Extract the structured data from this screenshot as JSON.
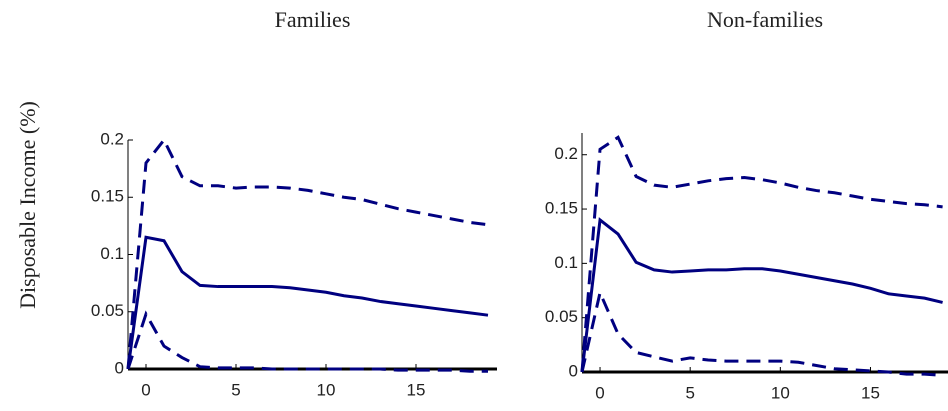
{
  "ylabel": "Disposable Income (%)",
  "chart_data": [
    {
      "type": "line",
      "title": "Families",
      "x": [
        -1,
        0,
        1,
        2,
        3,
        4,
        5,
        6,
        7,
        8,
        9,
        10,
        11,
        12,
        13,
        14,
        15,
        16,
        17,
        18,
        19
      ],
      "series": [
        {
          "color": "#000080",
          "dashed": false,
          "values": [
            0,
            0.115,
            0.112,
            0.085,
            0.073,
            0.072,
            0.072,
            0.072,
            0.072,
            0.071,
            0.069,
            0.067,
            0.064,
            0.062,
            0.059,
            0.057,
            0.055,
            0.053,
            0.051,
            0.049,
            0.047
          ]
        },
        {
          "color": "#000080",
          "dashed": true,
          "values": [
            0,
            0.18,
            0.2,
            0.168,
            0.16,
            0.16,
            0.158,
            0.159,
            0.159,
            0.158,
            0.156,
            0.153,
            0.15,
            0.148,
            0.144,
            0.14,
            0.137,
            0.134,
            0.131,
            0.128,
            0.126
          ]
        },
        {
          "color": "#000080",
          "dashed": true,
          "values": [
            0,
            0.048,
            0.02,
            0.01,
            0.002,
            0.001,
            0.001,
            0.001,
            0,
            0,
            0,
            0,
            0,
            0,
            0,
            -0.001,
            -0.001,
            -0.001,
            -0.001,
            -0.002,
            -0.002
          ]
        }
      ],
      "xlim": [
        -1,
        19.5
      ],
      "xticks": [
        0,
        5,
        10,
        15
      ],
      "ylim": [
        0,
        0.2
      ],
      "yticks": [
        0,
        0.05,
        0.1,
        0.15,
        0.2
      ]
    },
    {
      "type": "line",
      "title": "Non-families",
      "x": [
        -1,
        0,
        1,
        2,
        3,
        4,
        5,
        6,
        7,
        8,
        9,
        10,
        11,
        12,
        13,
        14,
        15,
        16,
        17,
        18,
        19
      ],
      "series": [
        {
          "color": "#000080",
          "dashed": false,
          "values": [
            0,
            0.14,
            0.127,
            0.101,
            0.094,
            0.092,
            0.093,
            0.094,
            0.094,
            0.095,
            0.095,
            0.093,
            0.09,
            0.087,
            0.084,
            0.081,
            0.077,
            0.072,
            0.07,
            0.068,
            0.064
          ]
        },
        {
          "color": "#000080",
          "dashed": true,
          "values": [
            0,
            0.205,
            0.216,
            0.18,
            0.172,
            0.17,
            0.173,
            0.176,
            0.178,
            0.179,
            0.177,
            0.174,
            0.17,
            0.167,
            0.165,
            0.162,
            0.159,
            0.157,
            0.155,
            0.154,
            0.152
          ]
        },
        {
          "color": "#000080",
          "dashed": true,
          "values": [
            0,
            0.073,
            0.035,
            0.018,
            0.014,
            0.01,
            0.013,
            0.011,
            0.01,
            0.01,
            0.01,
            0.01,
            0.009,
            0.006,
            0.003,
            0.002,
            0.001,
            0,
            -0.002,
            -0.002,
            -0.003
          ]
        }
      ],
      "xlim": [
        -1,
        19.3
      ],
      "xticks": [
        0,
        5,
        10,
        15
      ],
      "ylim": [
        0,
        0.22
      ],
      "yticks": [
        0,
        0.05,
        0.1,
        0.15,
        0.2
      ]
    }
  ]
}
